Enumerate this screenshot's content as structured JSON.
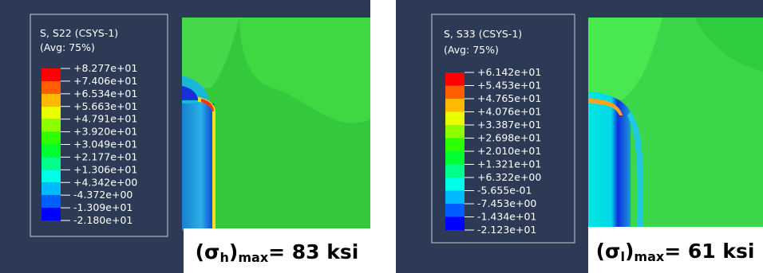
{
  "panels": [
    {
      "legend": {
        "title": "S, S22 (CSYS-1)",
        "subtitle": "(Avg: 75%)",
        "labels": [
          "+8.277e+01",
          "+7.406e+01",
          "+6.534e+01",
          "+5.663e+01",
          "+4.791e+01",
          "+3.920e+01",
          "+3.049e+01",
          "+2.177e+01",
          "+1.306e+01",
          "+4.342e+00",
          "-4.372e+00",
          "-1.309e+01",
          "-2.180e+01"
        ]
      },
      "caption": {
        "open": "(σ",
        "sub1": "h",
        "close": ")",
        "sub2": "max",
        "rest": "= 83 ksi"
      }
    },
    {
      "legend": {
        "title": "S, S33 (CSYS-1)",
        "subtitle": "(Avg: 75%)",
        "labels": [
          "+6.142e+01",
          "+5.453e+01",
          "+4.765e+01",
          "+4.076e+01",
          "+3.387e+01",
          "+2.698e+01",
          "+2.010e+01",
          "+1.321e+01",
          "+6.322e+00",
          "-5.655e-01",
          "-7.453e+00",
          "-1.434e+01",
          "-2.123e+01"
        ]
      },
      "caption": {
        "open": "(σ",
        "sub1": "l",
        "close": ")",
        "sub2": "max",
        "rest": "= 61 ksi"
      }
    }
  ]
}
